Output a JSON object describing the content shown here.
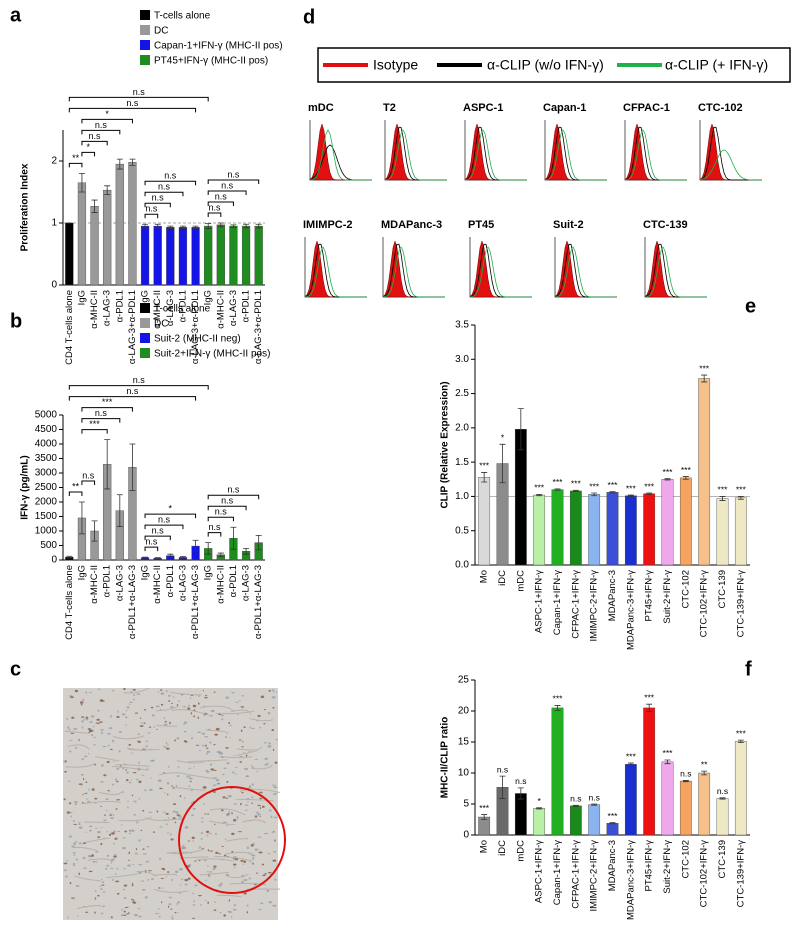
{
  "panel_labels": [
    "a",
    "b",
    "c",
    "d",
    "e",
    "f"
  ],
  "chart_data": [
    {
      "type": "bar",
      "ylabel": "Proliferation Index",
      "legend": [
        {
          "name": "T-cells alone",
          "color": "#000000"
        },
        {
          "name": "DC",
          "color": "#999999"
        },
        {
          "name": "Capan-1+IFN-γ (MHC-II pos)",
          "color": "#1414e6"
        },
        {
          "name": "PT45+IFN-γ (MHC-II pos)",
          "color": "#1e8c1e"
        }
      ],
      "categories": [
        "CD4 T-cells alone",
        "IgG",
        "α-MHC-II",
        "α-LAG-3",
        "α-PDL1",
        "α-LAG-3+α-PDL1",
        "IgG",
        "α-MHC-II",
        "α-LAG-3",
        "α-PDL1",
        "α-LAG-3+α-PDL1",
        "IgG",
        "α-MHC-II",
        "α-LAG-3",
        "α-PDL1",
        "α-LAG-3+α-PDL1"
      ],
      "values": [
        1,
        1.65,
        1.27,
        1.53,
        1.95,
        1.98,
        0.95,
        0.95,
        0.93,
        0.93,
        0.93,
        0.95,
        0.97,
        0.95,
        0.95,
        0.95
      ],
      "errors": [
        0,
        0.15,
        0.1,
        0.07,
        0.08,
        0.05,
        0.03,
        0.03,
        0.02,
        0.02,
        0.02,
        0.04,
        0.03,
        0.02,
        0.03,
        0.03
      ],
      "colors": [
        "#000000",
        "#999999",
        "#999999",
        "#999999",
        "#999999",
        "#999999",
        "#1414e6",
        "#1414e6",
        "#1414e6",
        "#1414e6",
        "#1414e6",
        "#1e8c1e",
        "#1e8c1e",
        "#1e8c1e",
        "#1e8c1e",
        "#1e8c1e"
      ],
      "refline": 1,
      "ylim": [
        0,
        2.5
      ],
      "yticks": [
        0,
        1,
        2
      ],
      "brackets": [
        {
          "label": "**",
          "from": 0,
          "to": 1
        },
        {
          "label": "*",
          "from": 1,
          "to": 2
        },
        {
          "label": "n.s",
          "from": 1,
          "to": 3
        },
        {
          "label": "n.s",
          "from": 1,
          "to": 4
        },
        {
          "label": "*",
          "from": 1,
          "to": 5
        },
        {
          "label": "n.s",
          "from": 0,
          "to": 10
        },
        {
          "label": "n.s",
          "from": 0,
          "to": 11
        },
        {
          "label": "n.s",
          "from": 6,
          "to": 7
        },
        {
          "label": "n.s",
          "from": 6,
          "to": 8
        },
        {
          "label": "n.s",
          "from": 6,
          "to": 9
        },
        {
          "label": "n.s",
          "from": 6,
          "to": 10
        },
        {
          "label": "n.s",
          "from": 11,
          "to": 12
        },
        {
          "label": "n.s",
          "from": 11,
          "to": 13
        },
        {
          "label": "n.s",
          "from": 11,
          "to": 14
        },
        {
          "label": "n.s",
          "from": 11,
          "to": 15
        }
      ]
    },
    {
      "type": "bar",
      "ylabel": "IFN-γ (pg/mL)",
      "legend": [
        {
          "name": "T-cells alone",
          "color": "#000000"
        },
        {
          "name": "DC",
          "color": "#999999"
        },
        {
          "name": "Suit-2 (MHC-II neg)",
          "color": "#1414e6"
        },
        {
          "name": "Suit-2+IFN-γ (MHC-II pos)",
          "color": "#1e8c1e"
        }
      ],
      "categories": [
        "CD4 T-cells alone",
        "IgG",
        "α-MHC-II",
        "α-PDL1",
        "α-LAG-3",
        "α-PDL1+α-LAG-3",
        "IgG",
        "α-MHC-II",
        "α-PDL1",
        "α-LAG-3",
        "α-PDL1+α-LAG-3",
        "IgG",
        "α-MHC-II",
        "α-PDL1",
        "α-LAG-3",
        "α-PDL1+α-LAG-3"
      ],
      "values": [
        100,
        1450,
        1000,
        3300,
        1700,
        3200,
        80,
        60,
        150,
        90,
        480,
        400,
        180,
        750,
        300,
        600
      ],
      "errors": [
        30,
        550,
        350,
        850,
        550,
        800,
        20,
        20,
        50,
        30,
        200,
        200,
        60,
        380,
        100,
        250
      ],
      "colors": [
        "#000000",
        "#999999",
        "#999999",
        "#999999",
        "#999999",
        "#999999",
        "#1414e6",
        "#1414e6",
        "#1414e6",
        "#1414e6",
        "#1414e6",
        "#1e8c1e",
        "#1e8c1e",
        "#1e8c1e",
        "#1e8c1e",
        "#1e8c1e"
      ],
      "ylim": [
        0,
        5000
      ],
      "yticks": [
        0,
        500,
        1000,
        1500,
        2000,
        2500,
        3000,
        3500,
        4000,
        4500,
        5000
      ],
      "brackets": [
        {
          "label": "**",
          "from": 0,
          "to": 1
        },
        {
          "label": "n.s",
          "from": 1,
          "to": 2
        },
        {
          "label": "***",
          "from": 1,
          "to": 3
        },
        {
          "label": "n.s",
          "from": 1,
          "to": 4
        },
        {
          "label": "***",
          "from": 1,
          "to": 5
        },
        {
          "label": "n.s",
          "from": 0,
          "to": 10
        },
        {
          "label": "n.s",
          "from": 0,
          "to": 11
        },
        {
          "label": "n.s",
          "from": 6,
          "to": 7
        },
        {
          "label": "n.s",
          "from": 6,
          "to": 8
        },
        {
          "label": "n.s",
          "from": 6,
          "to": 9
        },
        {
          "label": "*",
          "from": 6,
          "to": 10
        },
        {
          "label": "n.s",
          "from": 11,
          "to": 12
        },
        {
          "label": "n.s",
          "from": 11,
          "to": 13
        },
        {
          "label": "n.s",
          "from": 11,
          "to": 14
        },
        {
          "label": "n.s",
          "from": 11,
          "to": 15
        }
      ]
    },
    {
      "type": "bar",
      "ylabel": "CLIP (Relative Expression)",
      "categories": [
        "Mo",
        "iDC",
        "mDC",
        "ASPC-1+IFN-γ",
        "Capan-1+IFN-γ",
        "CFPAC-1+IFN-γ",
        "IMIMPC-2+IFN-γ",
        "MDAPanc-3",
        "MDAPanc-3+IFN-γ",
        "PT45+IFN-γ",
        "Suit-2+IFN-γ",
        "CTC-102",
        "CTC-102+IFN-γ",
        "CTC-139",
        "CTC-139+IFN-γ"
      ],
      "values": [
        1.28,
        1.48,
        1.98,
        1.02,
        1.1,
        1.08,
        1.03,
        1.06,
        1.01,
        1.04,
        1.25,
        1.27,
        2.72,
        0.97,
        0.98
      ],
      "errors": [
        0.07,
        0.28,
        0.3,
        0.01,
        0.01,
        0.01,
        0.02,
        0.01,
        0.01,
        0.01,
        0.01,
        0.02,
        0.05,
        0.03,
        0.02
      ],
      "colors": [
        "#d9d9d9",
        "#8c8c8c",
        "#000000",
        "#b8f0a8",
        "#22b022",
        "#1a8a1a",
        "#8ab4f0",
        "#3b4fd8",
        "#1a2fd0",
        "#ee1111",
        "#f0a8ec",
        "#f4a460",
        "#f5c08a",
        "#eee8c4",
        "#eee8c4"
      ],
      "significance": [
        "***",
        "*",
        null,
        "***",
        "***",
        "***",
        "***",
        "***",
        "***",
        "***",
        "***",
        "***",
        "***",
        "***",
        "***"
      ],
      "refline": 1,
      "ylim": [
        0,
        3.5
      ],
      "yticks": [
        {
          "value": 0,
          "label": "0.0"
        },
        {
          "value": 0.5,
          "label": "0.5"
        },
        {
          "value": 1,
          "label": "1.0"
        },
        {
          "value": 1.5,
          "label": "1.5"
        },
        {
          "value": 2,
          "label": "2.0"
        },
        {
          "value": 2.5,
          "label": "2.5"
        },
        {
          "value": 3,
          "label": "3.0"
        },
        {
          "value": 3.5,
          "label": "3.5"
        }
      ]
    },
    {
      "type": "bar",
      "ylabel": "MHC-II/CLIP ratio",
      "categories": [
        "Mo",
        "iDC",
        "mDC",
        "ASPC-1+IFN-γ",
        "Capan-1+IFN-γ",
        "CFPAC-1+IFN-γ",
        "IMIMPC-2+IFN-γ",
        "MDAPanc-3",
        "MDAPanc-3+IFN-γ",
        "PT45+IFN-γ",
        "Suit-2+IFN-γ",
        "CTC-102",
        "CTC-102+IFN-γ",
        "CTC-139",
        "CTC-139+IFN-γ"
      ],
      "values": [
        2.9,
        7.7,
        6.7,
        4.3,
        20.5,
        4.7,
        4.9,
        1.9,
        11.4,
        20.5,
        11.8,
        8.7,
        10,
        5.9,
        15.1
      ],
      "errors": [
        0.4,
        1.8,
        0.9,
        0.1,
        0.4,
        0.1,
        0.1,
        0.1,
        0.2,
        0.6,
        0.3,
        0.1,
        0.3,
        0.1,
        0.2
      ],
      "colors": [
        "#8c8c8c",
        "#6a6a6a",
        "#000000",
        "#b8f0a8",
        "#22b022",
        "#1a8a1a",
        "#8ab4f0",
        "#3b4fd8",
        "#1a2fd0",
        "#ee1111",
        "#f0a8ec",
        "#f4a460",
        "#f5c08a",
        "#eee8c4",
        "#eee8c4"
      ],
      "significance": [
        "***",
        "n.s",
        "n.s",
        "*",
        "***",
        "n.s",
        "n.s",
        "***",
        "***",
        "***",
        "***",
        "n.s",
        "**",
        "n.s",
        "***"
      ],
      "ylim": [
        0,
        25
      ],
      "yticks": [
        0,
        5,
        10,
        15,
        20,
        25
      ]
    }
  ],
  "flow": {
    "legend": [
      {
        "name": "Isotype",
        "color": "#e01010"
      },
      {
        "name": "α-CLIP (w/o IFN-γ)",
        "color": "#000000"
      },
      {
        "name": "α-CLIP (+ IFN-γ)",
        "color": "#22b04a"
      }
    ],
    "samples": [
      "mDC",
      "T2",
      "ASPC-1",
      "Capan-1",
      "CFPAC-1",
      "CTC-102",
      "IMIMPC-2",
      "MDAPanc-3",
      "PT45",
      "Suit-2",
      "CTC-139"
    ]
  }
}
